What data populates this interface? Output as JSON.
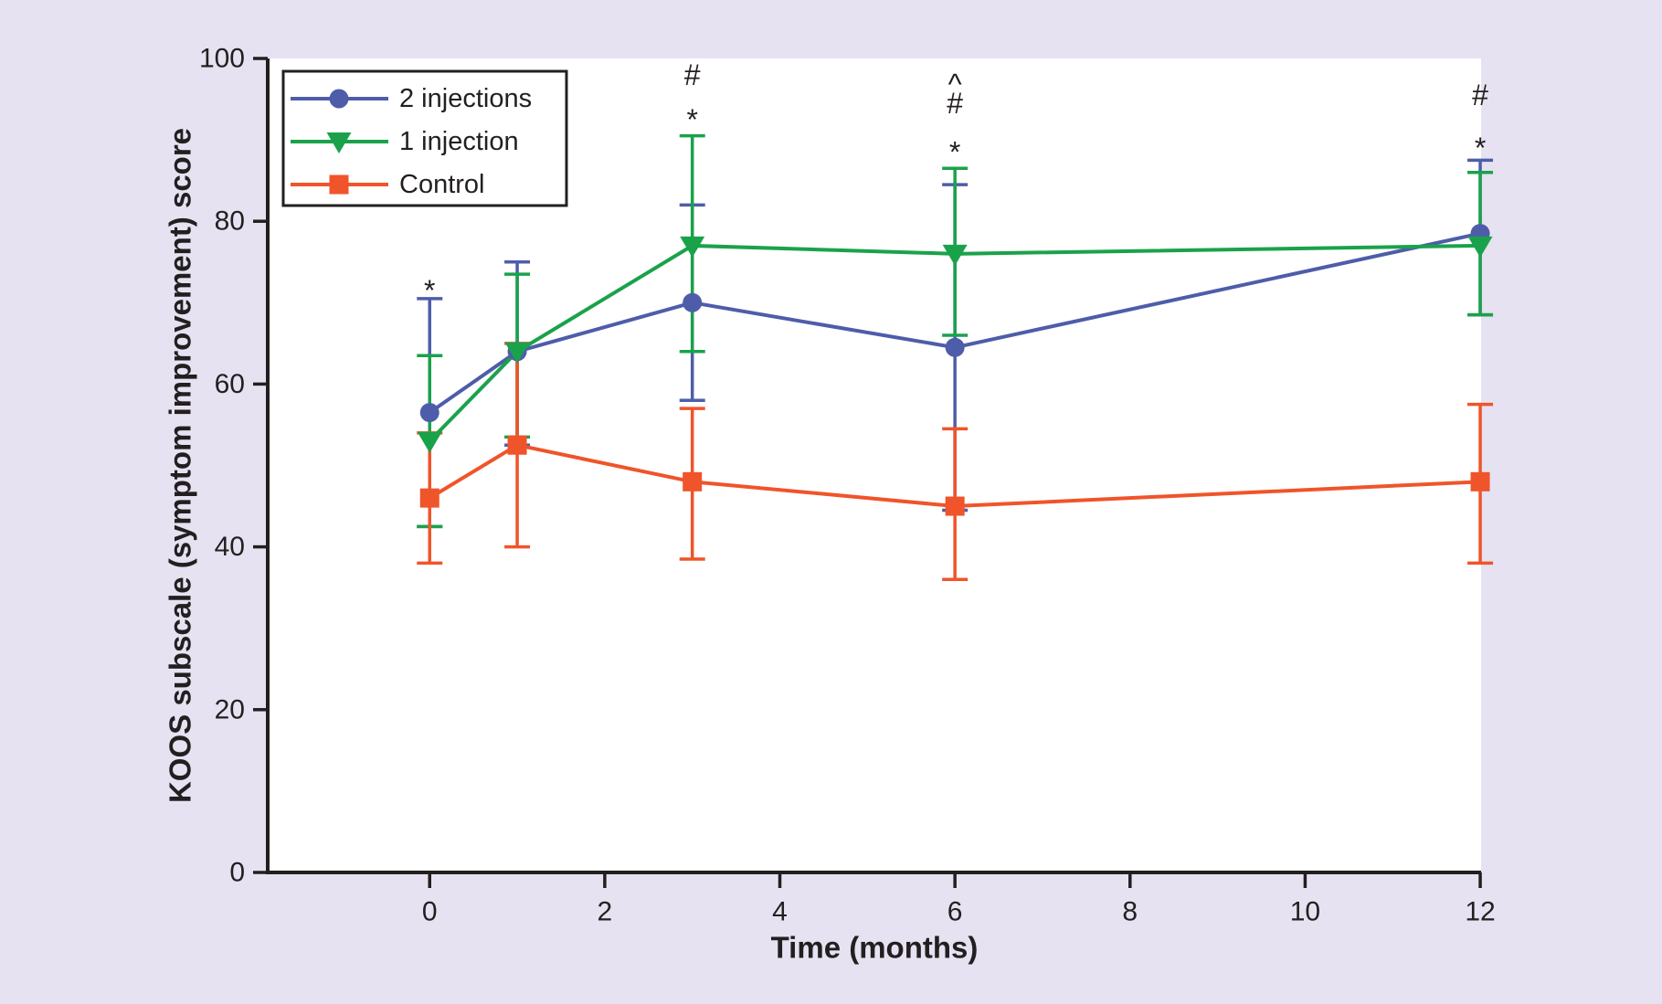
{
  "figure": {
    "background_color": "#e6e2f1",
    "plot_background_color": "#ffffff",
    "ink_color": "#231f20"
  },
  "chart_data": {
    "type": "line",
    "title": "",
    "xlabel": "Time (months)",
    "ylabel": "KOOS subscale (symptom improvement) score",
    "x_ticks": [
      0,
      2,
      4,
      6,
      8,
      10,
      12
    ],
    "y_ticks": [
      0,
      20,
      40,
      60,
      80,
      100
    ],
    "xlim": [
      -1.85,
      12.01
    ],
    "ylim": [
      0,
      100
    ],
    "grid": false,
    "legend": {
      "position": "top-left",
      "items": [
        "2 injections",
        "1 injection",
        "Control"
      ]
    },
    "x": [
      0,
      1,
      3,
      6,
      12
    ],
    "series": [
      {
        "name": "2 injections",
        "marker": "circle",
        "color": "#4e5da9",
        "values": [
          56.5,
          64,
          70,
          64.5,
          78.5
        ],
        "err_upper": [
          70.5,
          75,
          82,
          84.5,
          87.5
        ],
        "err_lower": [
          42.5,
          52.5,
          58,
          44.5,
          68.5
        ]
      },
      {
        "name": "1 injection",
        "marker": "triangle-down",
        "color": "#1aa24b",
        "values": [
          53,
          64,
          77,
          76,
          77
        ],
        "err_upper": [
          63.5,
          73.5,
          90.5,
          86.5,
          86
        ],
        "err_lower": [
          42.5,
          53.5,
          64,
          66,
          68.5
        ]
      },
      {
        "name": "Control",
        "marker": "square",
        "color": "#f0542a",
        "values": [
          46,
          52.5,
          48,
          45,
          48
        ],
        "err_upper": [
          54,
          65,
          57,
          54.5,
          57.5
        ],
        "err_lower": [
          38,
          40,
          38.5,
          36,
          38
        ]
      }
    ],
    "annotations": [
      {
        "x": 0,
        "symbols": [
          {
            "text": "*",
            "y": 72.5
          }
        ]
      },
      {
        "x": 3,
        "symbols": [
          {
            "text": "#",
            "y": 98
          },
          {
            "text": "*",
            "y": 93.5
          }
        ]
      },
      {
        "x": 6,
        "symbols": [
          {
            "text": "^",
            "y": 98
          },
          {
            "text": "#",
            "y": 94.5
          },
          {
            "text": "*",
            "y": 89.5
          }
        ]
      },
      {
        "x": 12,
        "symbols": [
          {
            "text": "#",
            "y": 95.5
          },
          {
            "text": "*",
            "y": 90
          }
        ]
      }
    ]
  }
}
